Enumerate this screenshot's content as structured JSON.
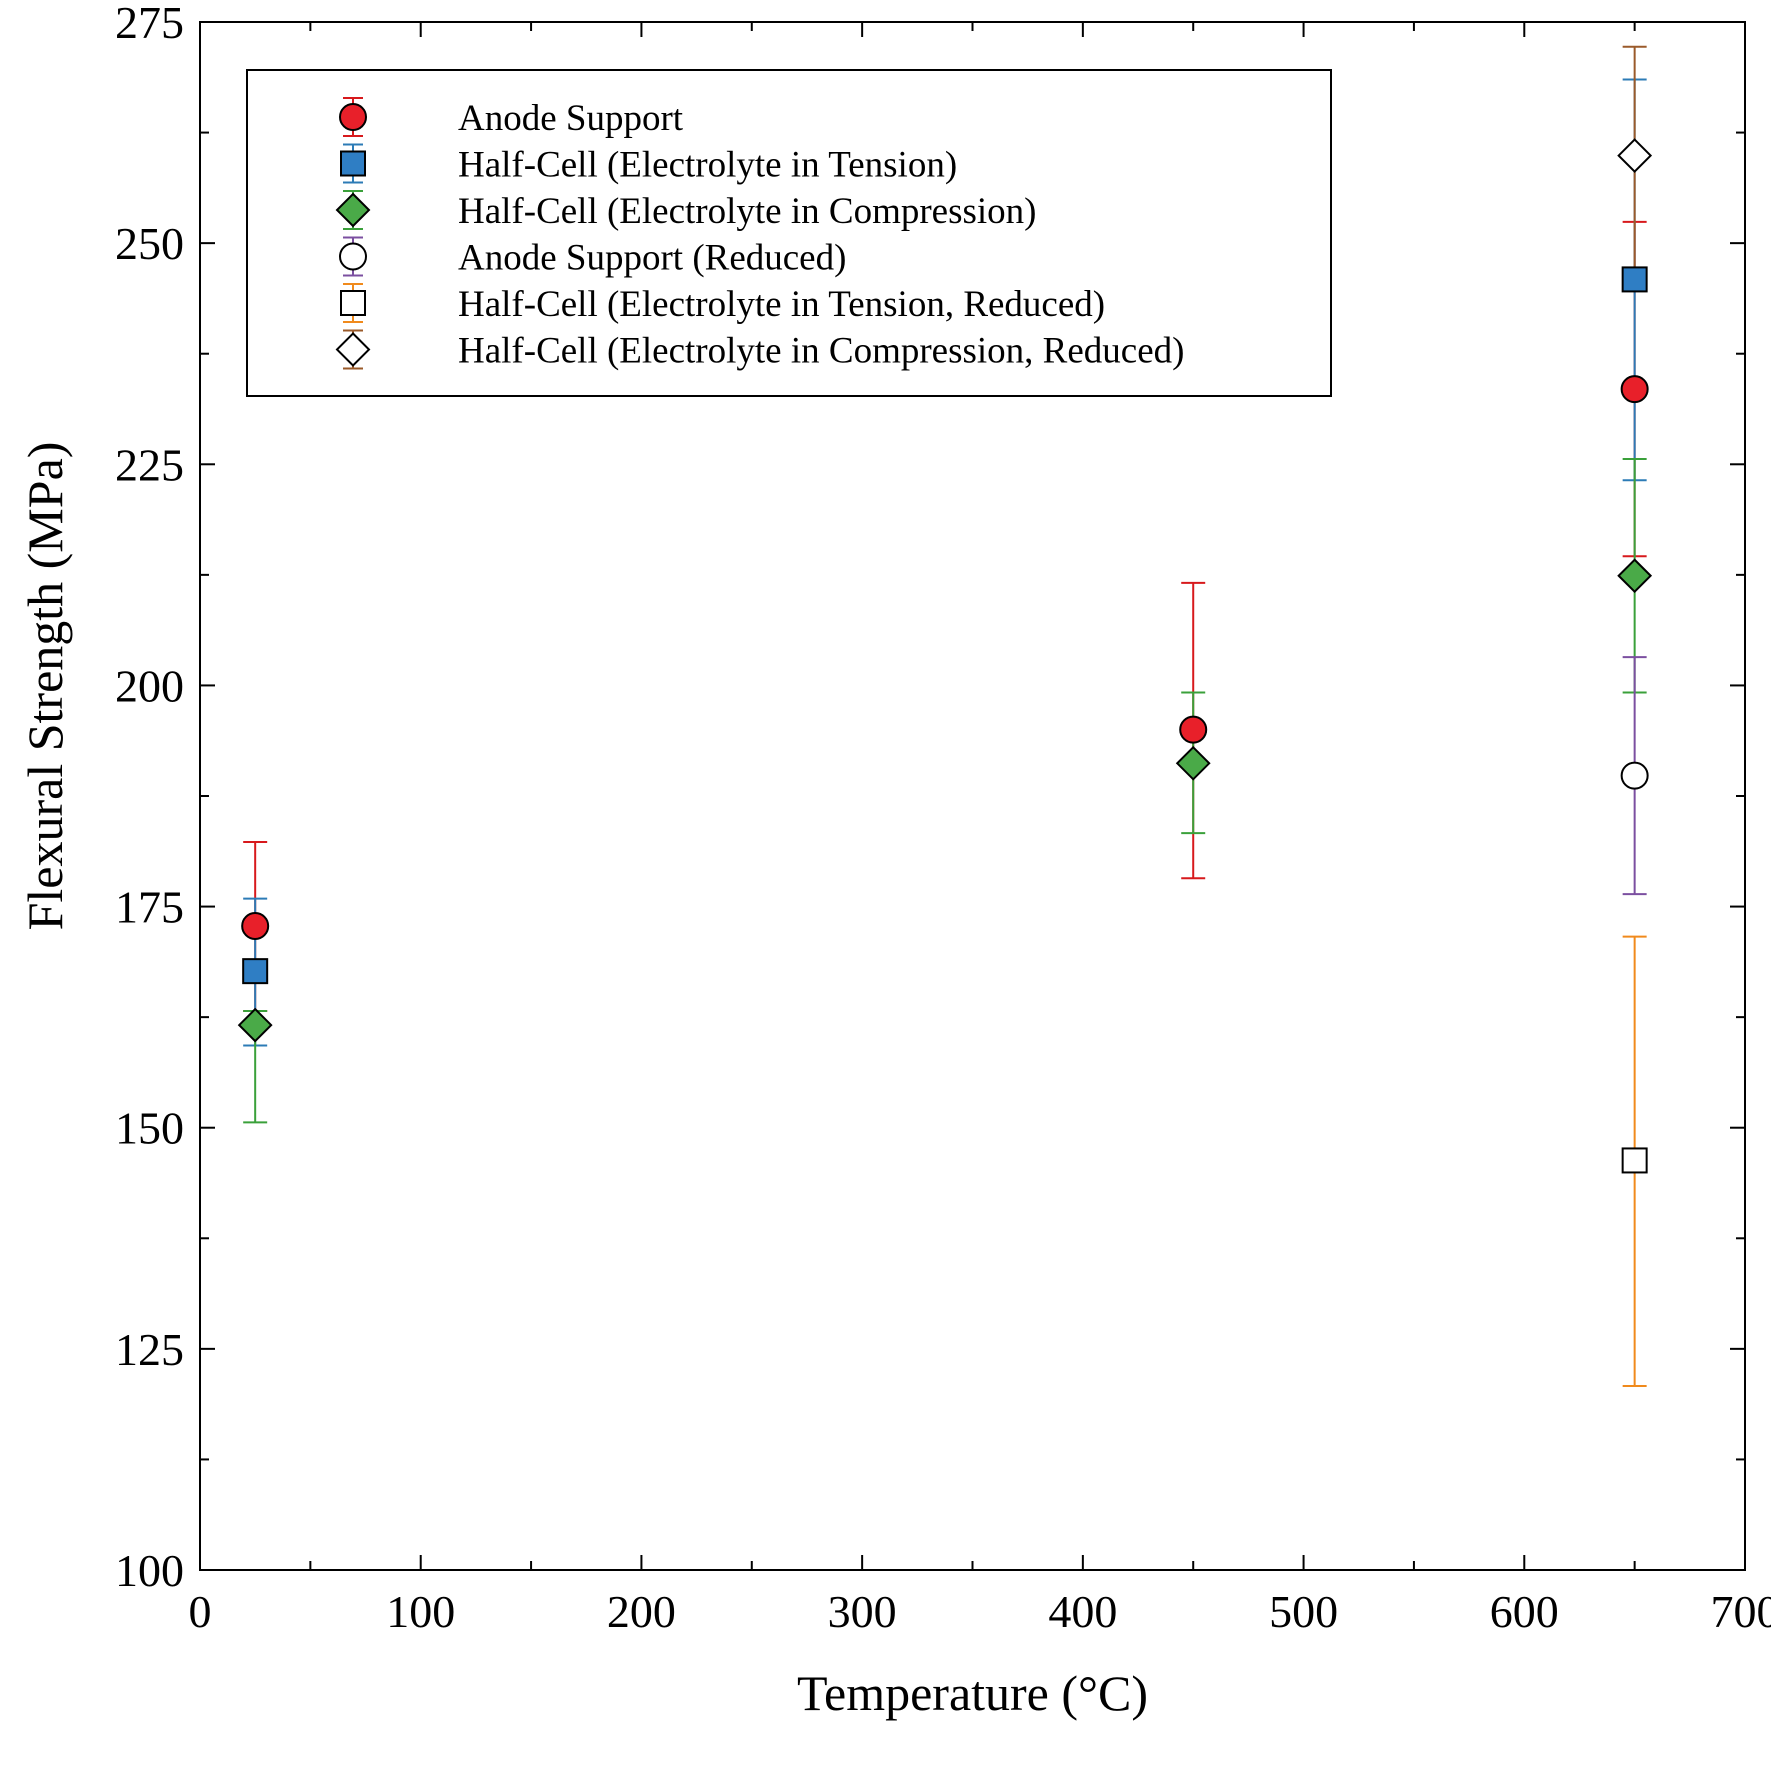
{
  "chart_data": {
    "type": "scatter",
    "xlabel": "Temperature (°C)",
    "ylabel": "Flexural Strength (MPa)",
    "xlim": [
      0,
      700
    ],
    "ylim": [
      100,
      275
    ],
    "xticks": [
      0,
      100,
      200,
      300,
      400,
      500,
      600,
      700
    ],
    "yticks": [
      100,
      125,
      150,
      175,
      200,
      225,
      250,
      275
    ],
    "x_minor_step": 50,
    "y_minor_step": 15,
    "grid": false,
    "legend_position": "top-left",
    "series": [
      {
        "name": "Anode Support",
        "marker": "circle",
        "filled": true,
        "fill_color": "#e8202a",
        "error_color": "#d7191c",
        "points": [
          {
            "x": 25,
            "y": 172.8,
            "err_low": 163.2,
            "err_high": 182.3
          },
          {
            "x": 450,
            "y": 195.0,
            "err_low": 178.2,
            "err_high": 211.6
          },
          {
            "x": 650,
            "y": 233.5,
            "err_low": 214.6,
            "err_high": 252.4
          }
        ]
      },
      {
        "name": "Half-Cell (Electrolyte in Tension)",
        "marker": "square",
        "filled": true,
        "fill_color": "#2f7ec4",
        "error_color": "#2c7bb6",
        "points": [
          {
            "x": 25,
            "y": 167.7,
            "err_low": 159.3,
            "err_high": 175.9
          },
          {
            "x": 650,
            "y": 245.9,
            "err_low": 223.2,
            "err_high": 268.5
          }
        ]
      },
      {
        "name": "Half-Cell (Electrolyte in Compression)",
        "marker": "diamond",
        "filled": true,
        "fill_color": "#4aaa48",
        "error_color": "#3aa03a",
        "points": [
          {
            "x": 25,
            "y": 161.6,
            "err_low": 150.6,
            "err_high": 163.2
          },
          {
            "x": 450,
            "y": 191.2,
            "err_low": 183.3,
            "err_high": 199.2
          },
          {
            "x": 650,
            "y": 212.4,
            "err_low": 199.2,
            "err_high": 225.6
          }
        ]
      },
      {
        "name": "Anode Support (Reduced)",
        "marker": "circle",
        "filled": false,
        "fill_color": "#ffffff",
        "error_color": "#7b4fa0",
        "points": [
          {
            "x": 650,
            "y": 189.8,
            "err_low": 176.4,
            "err_high": 203.2
          }
        ]
      },
      {
        "name": "Half-Cell (Electrolyte in Tension, Reduced)",
        "marker": "square",
        "filled": false,
        "fill_color": "#ffffff",
        "error_color": "#f08a1c",
        "points": [
          {
            "x": 650,
            "y": 146.3,
            "err_low": 120.8,
            "err_high": 171.6
          }
        ]
      },
      {
        "name": "Half-Cell (Electrolyte in Compression, Reduced)",
        "marker": "diamond",
        "filled": false,
        "fill_color": "#ffffff",
        "error_color": "#9a5a2a",
        "points": [
          {
            "x": 650,
            "y": 259.9,
            "err_low": 246.6,
            "err_high": 272.2
          }
        ]
      }
    ]
  }
}
